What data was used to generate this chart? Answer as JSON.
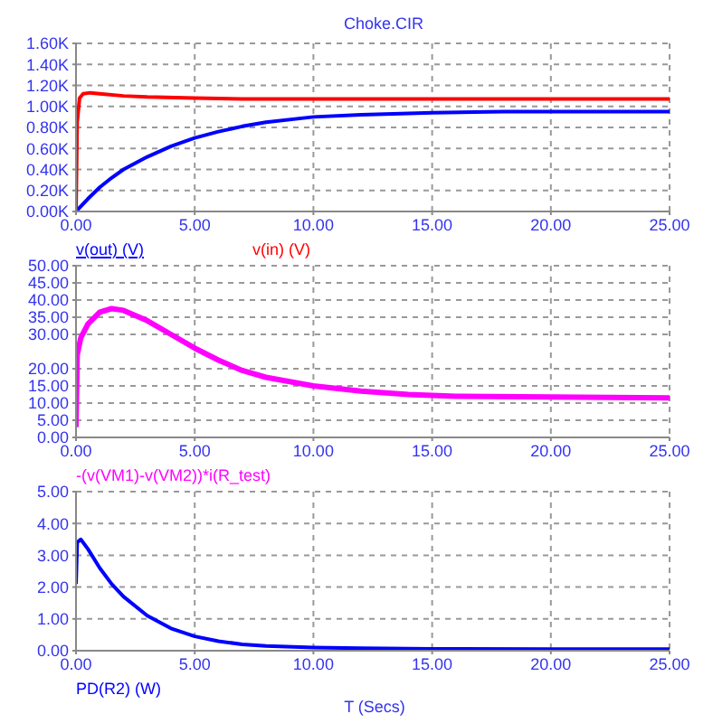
{
  "chart_data": [
    {
      "type": "line",
      "title": "Choke.CIR",
      "legend": "bottom",
      "grid": true,
      "marker": "none",
      "xlim": [
        0,
        25
      ],
      "xticks": [
        {
          "value": 0,
          "label": "0.00"
        },
        {
          "value": 5,
          "label": "5.00"
        },
        {
          "value": 10,
          "label": "10.00"
        },
        {
          "value": 15,
          "label": "15.00"
        },
        {
          "value": 20,
          "label": "20.00"
        },
        {
          "value": 25,
          "label": "25.00"
        }
      ],
      "ylim": [
        0,
        1600
      ],
      "yticks": [
        {
          "value": 0,
          "label": "0.00K"
        },
        {
          "value": 200,
          "label": "0.20K"
        },
        {
          "value": 400,
          "label": "0.40K"
        },
        {
          "value": 600,
          "label": "0.60K"
        },
        {
          "value": 800,
          "label": "0.80K"
        },
        {
          "value": 1000,
          "label": "1.00K"
        },
        {
          "value": 1200,
          "label": "1.20K"
        },
        {
          "value": 1400,
          "label": "1.40K"
        },
        {
          "value": 1600,
          "label": "1.60K"
        }
      ],
      "series": [
        {
          "name": "v(out) (V)",
          "color": "#0000ff",
          "x": [
            0,
            0.5,
            1,
            1.5,
            2,
            3,
            4,
            5,
            6,
            7,
            8,
            10,
            12,
            15,
            18,
            21,
            25
          ],
          "values": [
            0,
            120,
            230,
            320,
            400,
            520,
            620,
            700,
            760,
            810,
            850,
            900,
            920,
            940,
            950,
            950,
            950
          ]
        },
        {
          "name": "v(in) (V)",
          "color": "#ff0000",
          "x": [
            0,
            0.05,
            0.15,
            0.3,
            0.6,
            1,
            2,
            3,
            5,
            7,
            10,
            15,
            20,
            25
          ],
          "values": [
            0,
            850,
            1080,
            1120,
            1130,
            1120,
            1100,
            1090,
            1080,
            1070,
            1070,
            1070,
            1070,
            1070
          ]
        }
      ]
    },
    {
      "type": "line",
      "legend": "bottom",
      "grid": true,
      "marker": "none",
      "xlim": [
        0,
        25
      ],
      "xticks": [
        {
          "value": 0,
          "label": "0.00"
        },
        {
          "value": 5,
          "label": "5.00"
        },
        {
          "value": 10,
          "label": "10.00"
        },
        {
          "value": 15,
          "label": "15.00"
        },
        {
          "value": 20,
          "label": "20.00"
        },
        {
          "value": 25,
          "label": "25.00"
        }
      ],
      "ylim": [
        0,
        50
      ],
      "yticks": [
        {
          "value": 0,
          "label": "0.00"
        },
        {
          "value": 5,
          "label": "5.00"
        },
        {
          "value": 10,
          "label": "10.00"
        },
        {
          "value": 15,
          "label": "15.00"
        },
        {
          "value": 20,
          "label": "20.00"
        },
        {
          "value": 30,
          "label": "30.00"
        },
        {
          "value": 35,
          "label": "35.00"
        },
        {
          "value": 40,
          "label": "40.00"
        },
        {
          "value": 45,
          "label": "45.00"
        },
        {
          "value": 50,
          "label": "50.00"
        }
      ],
      "series": [
        {
          "name": "-(v(VM1)-v(VM2))*i(R_test)",
          "color": "#ff00ff",
          "x": [
            0,
            0.05,
            0.2,
            0.5,
            1,
            1.5,
            2,
            3,
            4,
            5,
            6,
            7,
            8,
            10,
            12,
            14,
            16,
            20,
            25
          ],
          "values": [
            3,
            24,
            29,
            33,
            36.5,
            37.5,
            37,
            34,
            30,
            26,
            22.5,
            19.5,
            17.5,
            15,
            13.5,
            12.5,
            12,
            11.8,
            11.5
          ]
        }
      ]
    },
    {
      "type": "line",
      "legend": "bottom",
      "grid": true,
      "marker": "none",
      "xlabel": "T (Secs)",
      "xlim": [
        0,
        25
      ],
      "xticks": [
        {
          "value": 0,
          "label": "0.00"
        },
        {
          "value": 5,
          "label": "5.00"
        },
        {
          "value": 10,
          "label": "10.00"
        },
        {
          "value": 15,
          "label": "15.00"
        },
        {
          "value": 20,
          "label": "20.00"
        },
        {
          "value": 25,
          "label": "25.00"
        }
      ],
      "ylim": [
        0,
        5
      ],
      "yticks": [
        {
          "value": 0,
          "label": "0.00"
        },
        {
          "value": 1,
          "label": "1.00"
        },
        {
          "value": 2,
          "label": "2.00"
        },
        {
          "value": 3,
          "label": "3.00"
        },
        {
          "value": 4,
          "label": "4.00"
        },
        {
          "value": 5,
          "label": "5.00"
        }
      ],
      "series": [
        {
          "name": "PD(R2) (W)",
          "color": "#0000ff",
          "x": [
            0,
            0.05,
            0.2,
            0.5,
            1,
            1.5,
            2,
            3,
            4,
            5,
            6,
            7,
            8,
            10,
            12,
            15,
            20,
            25
          ],
          "values": [
            2.1,
            3.4,
            3.5,
            3.2,
            2.6,
            2.1,
            1.7,
            1.1,
            0.7,
            0.45,
            0.3,
            0.2,
            0.15,
            0.1,
            0.08,
            0.06,
            0.05,
            0.05
          ]
        }
      ]
    }
  ]
}
